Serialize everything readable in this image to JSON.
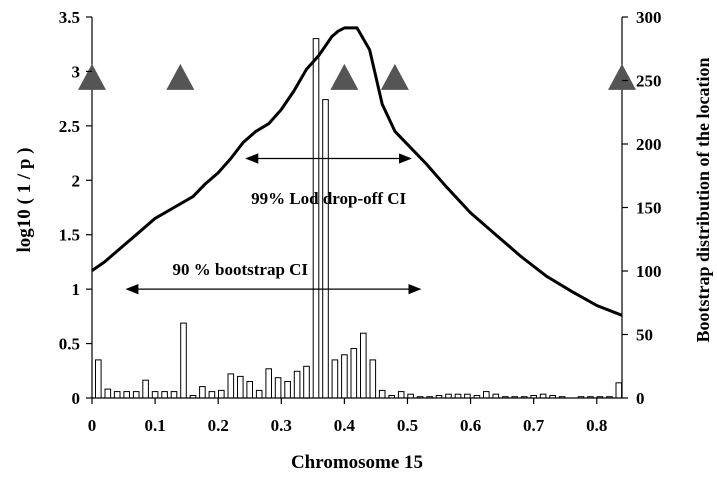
{
  "chart_data": {
    "type": "bar+line",
    "xlabel": "Chromosome 15",
    "ylabel_left": "log10 ( 1 / p )",
    "ylabel_right": "Bootstrap distribution of the location",
    "xlim": [
      0,
      0.84
    ],
    "ylim_left": [
      0,
      3.5
    ],
    "ylim_right": [
      0,
      300
    ],
    "x_ticks": [
      "0",
      "0.1",
      "0.2",
      "0.3",
      "0.4",
      "0.5",
      "0.6",
      "0.7",
      "0.8"
    ],
    "y_left_ticks": [
      "0",
      "0.5",
      "1",
      "1.5",
      "2",
      "2.5",
      "3",
      "3.5"
    ],
    "y_right_ticks": [
      "0",
      "50",
      "100",
      "150",
      "200",
      "250",
      "300"
    ],
    "lod_curve": {
      "x": [
        0,
        0.02,
        0.05,
        0.08,
        0.1,
        0.13,
        0.16,
        0.18,
        0.2,
        0.22,
        0.24,
        0.26,
        0.28,
        0.3,
        0.32,
        0.34,
        0.36,
        0.38,
        0.39,
        0.4,
        0.42,
        0.44,
        0.46,
        0.48,
        0.5,
        0.53,
        0.56,
        0.6,
        0.64,
        0.68,
        0.72,
        0.76,
        0.8,
        0.84
      ],
      "y": [
        1.17,
        1.25,
        1.4,
        1.55,
        1.65,
        1.75,
        1.85,
        1.97,
        2.07,
        2.2,
        2.35,
        2.45,
        2.52,
        2.65,
        2.82,
        3.02,
        3.15,
        3.32,
        3.37,
        3.4,
        3.4,
        3.2,
        2.7,
        2.45,
        2.33,
        2.15,
        1.95,
        1.7,
        1.5,
        1.3,
        1.12,
        0.98,
        0.85,
        0.76
      ]
    },
    "bootstrap_bars": {
      "x": [
        0.01,
        0.025,
        0.04,
        0.055,
        0.07,
        0.085,
        0.1,
        0.115,
        0.13,
        0.145,
        0.16,
        0.175,
        0.19,
        0.205,
        0.22,
        0.235,
        0.25,
        0.265,
        0.28,
        0.295,
        0.31,
        0.325,
        0.34,
        0.355,
        0.37,
        0.385,
        0.4,
        0.415,
        0.43,
        0.445,
        0.46,
        0.475,
        0.49,
        0.505,
        0.52,
        0.535,
        0.55,
        0.565,
        0.58,
        0.595,
        0.61,
        0.625,
        0.64,
        0.655,
        0.67,
        0.685,
        0.7,
        0.715,
        0.73,
        0.745,
        0.76,
        0.775,
        0.79,
        0.805,
        0.82,
        0.835
      ],
      "values": [
        30,
        7,
        5,
        5,
        5,
        14,
        5,
        5,
        5,
        59,
        2,
        9,
        5,
        6,
        19,
        17,
        13,
        6,
        23,
        16,
        13,
        21,
        25,
        283,
        235,
        30,
        34,
        39,
        51,
        30,
        6,
        2,
        5,
        3,
        1,
        1,
        2,
        3,
        3,
        3,
        2,
        5,
        3,
        1,
        1,
        1,
        2,
        3,
        2,
        1,
        0,
        1,
        1,
        1,
        1,
        12
      ]
    },
    "markers": {
      "shape": "triangle",
      "x": [
        0.0,
        0.14,
        0.4,
        0.48,
        0.84
      ],
      "y_left": 2.95
    },
    "intervals": [
      {
        "label": "99% Lod drop-off CI",
        "x_start": 0.245,
        "x_end": 0.505,
        "y_left": 2.2
      },
      {
        "label": "90 % bootstrap CI",
        "x_start": 0.055,
        "x_end": 0.52,
        "y_left": 1.0
      }
    ],
    "colors": {
      "line": "#000000",
      "bar_fill": "#ffffff",
      "bar_stroke": "#000000",
      "marker": "#555555"
    }
  }
}
